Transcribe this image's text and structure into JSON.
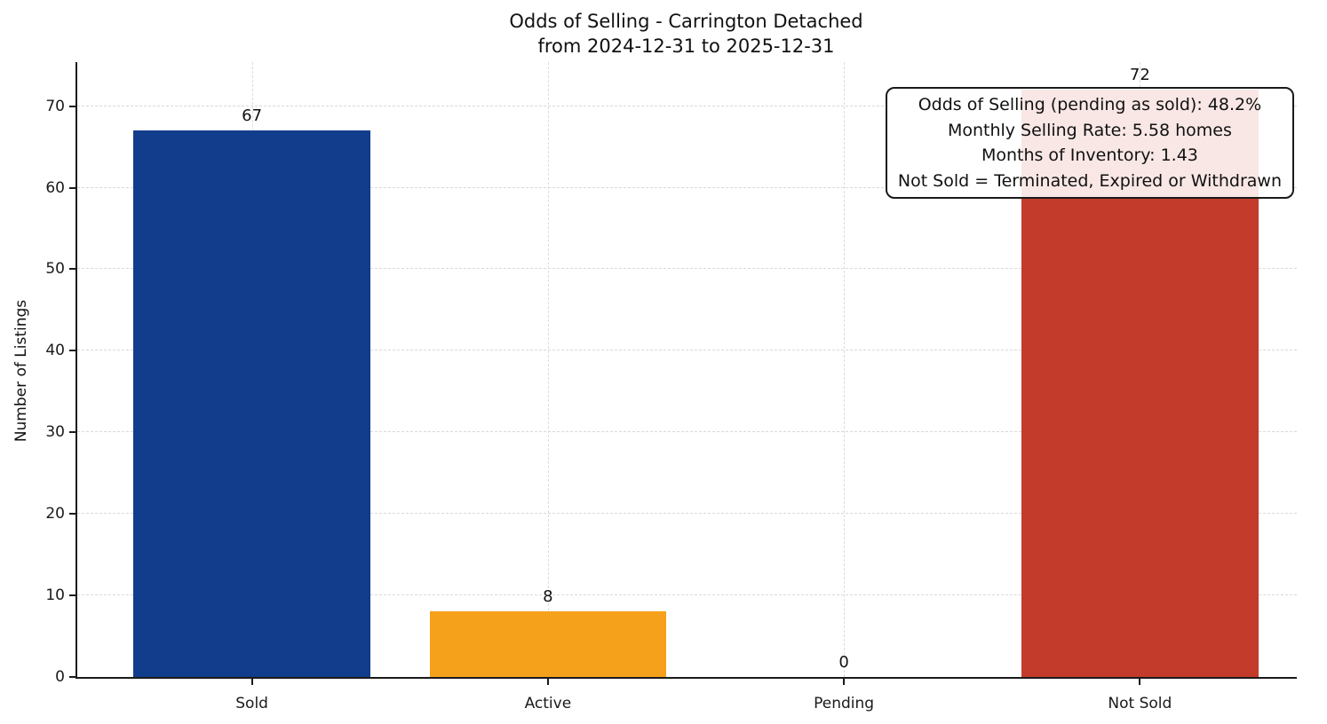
{
  "figure": {
    "background": "#ffffff",
    "axis_color": "#1a1a1a",
    "grid_color": "#d9d9d9"
  },
  "chart_data": {
    "type": "bar",
    "title": "Odds of Selling - Carrington Detached",
    "subtitle": "from 2024-12-31 to 2025-12-31",
    "xlabel": "",
    "ylabel": "Number of Listings",
    "categories": [
      "Sold",
      "Active",
      "Pending",
      "Not Sold"
    ],
    "values": [
      67,
      8,
      0,
      72
    ],
    "bar_colors": [
      "#123d8c",
      "#f5a11c",
      "#888888",
      "#c23b2b"
    ],
    "yticks": [
      0,
      10,
      20,
      30,
      40,
      50,
      60,
      70
    ],
    "ylim": [
      0,
      75.4
    ],
    "grid": true,
    "grid_style": "dashed",
    "legend": "none",
    "annotation": {
      "lines": [
        "Odds of Selling (pending as sold): 48.2%",
        "Monthly Selling Rate: 5.58 homes",
        "Months of Inventory: 1.43",
        "Not Sold = Terminated, Expired or Withdrawn"
      ]
    }
  }
}
